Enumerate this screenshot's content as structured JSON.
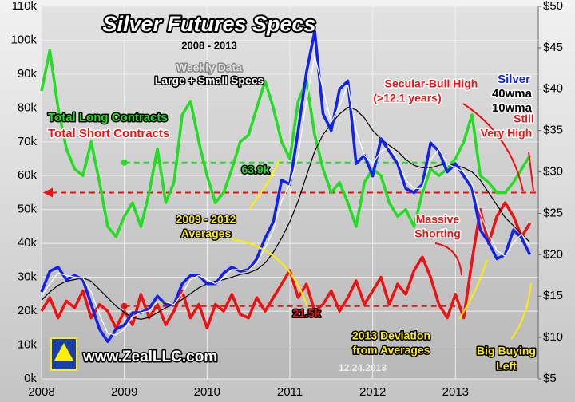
{
  "chart_data": {
    "type": "line",
    "title": "Silver Futures Specs",
    "subtitle": "2008 - 2013",
    "x": [
      2008.0,
      2008.1,
      2008.2,
      2008.3,
      2008.4,
      2008.5,
      2008.6,
      2008.7,
      2008.8,
      2008.9,
      2009.0,
      2009.1,
      2009.2,
      2009.3,
      2009.4,
      2009.5,
      2009.6,
      2009.7,
      2009.8,
      2009.9,
      2010.0,
      2010.1,
      2010.2,
      2010.3,
      2010.4,
      2010.5,
      2010.6,
      2010.7,
      2010.8,
      2010.9,
      2011.0,
      2011.1,
      2011.2,
      2011.3,
      2011.4,
      2011.5,
      2011.6,
      2011.7,
      2011.8,
      2011.9,
      2012.0,
      2012.1,
      2012.2,
      2012.3,
      2012.4,
      2012.5,
      2012.6,
      2012.7,
      2012.8,
      2012.9,
      2013.0,
      2013.1,
      2013.2,
      2013.3,
      2013.4,
      2013.5,
      2013.6,
      2013.7,
      2013.8,
      2013.9
    ],
    "xlim": [
      2008,
      2014
    ],
    "xticks": [
      2008,
      2009,
      2010,
      2011,
      2012,
      2013
    ],
    "ylim": [
      0,
      110
    ],
    "yticks": [
      {
        "value": 0,
        "label": "0k"
      },
      {
        "value": 10,
        "label": "10k"
      },
      {
        "value": 20,
        "label": "20k"
      },
      {
        "value": 30,
        "label": "30k"
      },
      {
        "value": 40,
        "label": "40k"
      },
      {
        "value": 50,
        "label": "50k"
      },
      {
        "value": 60,
        "label": "60k"
      },
      {
        "value": 70,
        "label": "70k"
      },
      {
        "value": 80,
        "label": "80k"
      },
      {
        "value": 90,
        "label": "90k"
      },
      {
        "value": 100,
        "label": "100k"
      },
      {
        "value": 110,
        "label": "110k"
      }
    ],
    "y2lim": [
      5,
      50
    ],
    "y2ticks": [
      {
        "value": 5,
        "label": "$5"
      },
      {
        "value": 10,
        "label": "$10"
      },
      {
        "value": 15,
        "label": "$15"
      },
      {
        "value": 20,
        "label": "$20"
      },
      {
        "value": 25,
        "label": "$25"
      },
      {
        "value": 30,
        "label": "$30"
      },
      {
        "value": 35,
        "label": "$35"
      },
      {
        "value": 40,
        "label": "$40"
      },
      {
        "value": 45,
        "label": "$45"
      },
      {
        "value": 50,
        "label": "$50"
      }
    ],
    "grid": true,
    "series": [
      {
        "name": "Total Long Contracts",
        "color": "#22dd22",
        "values": [
          85,
          97,
          80,
          68,
          62,
          60,
          70,
          58,
          45,
          42,
          48,
          52,
          45,
          55,
          68,
          52,
          58,
          78,
          82,
          70,
          60,
          52,
          55,
          62,
          70,
          72,
          80,
          88,
          80,
          70,
          65,
          82,
          88,
          72,
          62,
          55,
          58,
          52,
          45,
          58,
          62,
          60,
          52,
          48,
          50,
          45,
          55,
          62,
          60,
          62,
          65,
          70,
          78,
          60,
          58,
          55,
          55,
          58,
          62,
          66
        ]
      },
      {
        "name": "Total Short Contracts",
        "color": "#ee1111",
        "values": [
          20,
          24,
          18,
          23,
          21,
          26,
          18,
          22,
          20,
          15,
          20,
          16,
          25,
          18,
          22,
          16,
          20,
          26,
          18,
          22,
          15,
          22,
          20,
          25,
          19,
          18,
          24,
          20,
          24,
          28,
          32,
          24,
          28,
          20,
          22,
          26,
          20,
          24,
          29,
          22,
          26,
          30,
          22,
          28,
          25,
          32,
          36,
          30,
          22,
          18,
          25,
          18,
          35,
          50,
          40,
          48,
          52,
          48,
          42,
          46
        ]
      },
      {
        "name": "40wma",
        "color": "#000000",
        "axis": "y2",
        "values": [
          14.5,
          15.5,
          16.3,
          16.8,
          17,
          17.2,
          16.8,
          15.8,
          14.8,
          13.8,
          13,
          12.4,
          12.2,
          12.4,
          13,
          13.6,
          14,
          14.6,
          15.3,
          16,
          16.5,
          16.8,
          17,
          17.3,
          17.6,
          17.8,
          18.2,
          19,
          20.3,
          22,
          24,
          26.5,
          29.5,
          32.5,
          34.5,
          35.8,
          37,
          37.8,
          37.5,
          36.5,
          35,
          34,
          33.2,
          32.5,
          31.5,
          30.8,
          30.5,
          30.5,
          30.8,
          31,
          30.8,
          30.5,
          30,
          29,
          27.5,
          26,
          24.5,
          23.5,
          22.5,
          21.5
        ]
      },
      {
        "name": "Silver",
        "color": "#1122ee",
        "axis": "y2",
        "values": [
          15.5,
          18,
          18.5,
          17,
          17.5,
          17,
          14,
          11,
          9.5,
          11,
          11.5,
          13,
          13,
          13.5,
          15,
          14,
          14,
          16.5,
          17.5,
          17.5,
          16.5,
          16.5,
          17.8,
          18.5,
          18,
          18.2,
          19.5,
          22,
          24,
          29,
          28.5,
          35,
          42,
          47,
          37,
          35,
          40,
          41,
          31,
          32,
          29.5,
          34,
          32.5,
          31,
          28,
          27.5,
          28.5,
          33.5,
          32.5,
          30,
          31,
          29.5,
          28,
          23,
          21.5,
          19.5,
          20,
          23,
          22,
          20
        ]
      },
      {
        "name": "10wma",
        "color": "#ffffff",
        "axis": "y2",
        "values": [
          15,
          16.5,
          17.8,
          17.5,
          17.3,
          17.2,
          15.5,
          12.8,
          10.5,
          10.3,
          11,
          12.5,
          13,
          13.2,
          14.3,
          14.3,
          14,
          15.3,
          17,
          17.5,
          17,
          16.5,
          17.2,
          18.2,
          18.2,
          18.1,
          19,
          20.8,
          23,
          26.5,
          28.5,
          32,
          38.5,
          44,
          40,
          36,
          38,
          40.5,
          35,
          32,
          31,
          32.5,
          33,
          31.5,
          29,
          28,
          28,
          31.5,
          32.8,
          31,
          30.5,
          30,
          28.5,
          25,
          22.5,
          20.5,
          19.8,
          21.5,
          22.5,
          21
        ]
      }
    ],
    "reference_lines": [
      {
        "value": 63.9,
        "label": "63.9k",
        "color": "#22dd22",
        "from": 2009,
        "to": 2013
      },
      {
        "value": 21.5,
        "label": "21.5k",
        "color": "#ee1111",
        "from": 2009,
        "to": 2013
      },
      {
        "value": 55,
        "color": "#ee1111"
      }
    ],
    "annotations": [
      "Weekly Data",
      "Large + Small Specs",
      "Secular-Bull High",
      "(>12.1 years)",
      "Still",
      "Very High",
      "2009 - 2012",
      "Averages",
      "Massive",
      "Shorting",
      "2013 Deviation",
      "from Averages",
      "Big Buying",
      "Left",
      "www.ZealLLC.com",
      "12.24.2013"
    ]
  }
}
